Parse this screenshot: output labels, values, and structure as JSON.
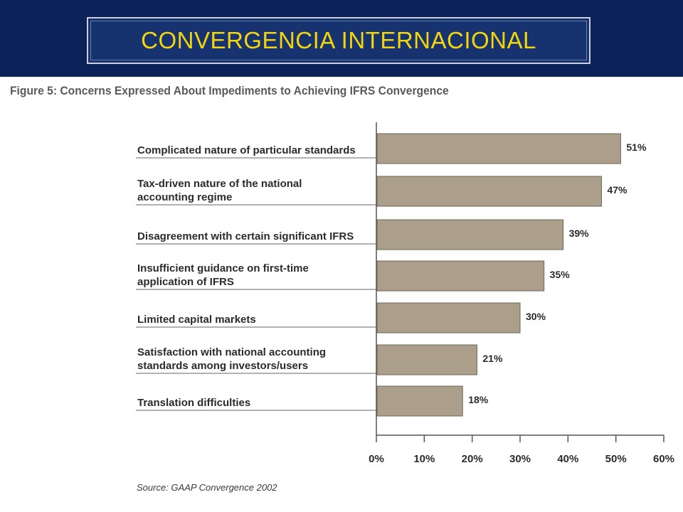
{
  "header": {
    "title": "CONVERGENCIA INTERNACIONAL"
  },
  "figure": {
    "caption": "Figure 5:  Concerns Expressed About Impediments to Achieving IFRS Convergence",
    "source": "Source: GAAP Convergence 2002"
  },
  "colors": {
    "header_bg": "#0b2259",
    "title_text": "#f4d40a",
    "bar_fill": "#ab9f8b",
    "bar_stroke": "#6f6454"
  },
  "chart_data": {
    "type": "bar",
    "orientation": "horizontal",
    "categories": [
      [
        "Complicated nature of particular standards"
      ],
      [
        "Tax-driven nature of the national",
        "accounting regime"
      ],
      [
        "Disagreement with certain significant IFRS"
      ],
      [
        "Insufficient guidance on first-time",
        "application of IFRS"
      ],
      [
        "Limited capital markets"
      ],
      [
        "Satisfaction with national accounting",
        "standards among investors/users"
      ],
      [
        "Translation difficulties"
      ]
    ],
    "values": [
      51,
      47,
      39,
      35,
      30,
      21,
      18
    ],
    "value_labels": [
      "51%",
      "47%",
      "39%",
      "35%",
      "30%",
      "21%",
      "18%"
    ],
    "xlim": [
      0,
      60
    ],
    "xticks": [
      0,
      10,
      20,
      30,
      40,
      50,
      60
    ],
    "xtick_labels": [
      "0%",
      "10%",
      "20%",
      "30%",
      "40%",
      "50%",
      "60%"
    ],
    "grid": false,
    "legend": "none"
  }
}
